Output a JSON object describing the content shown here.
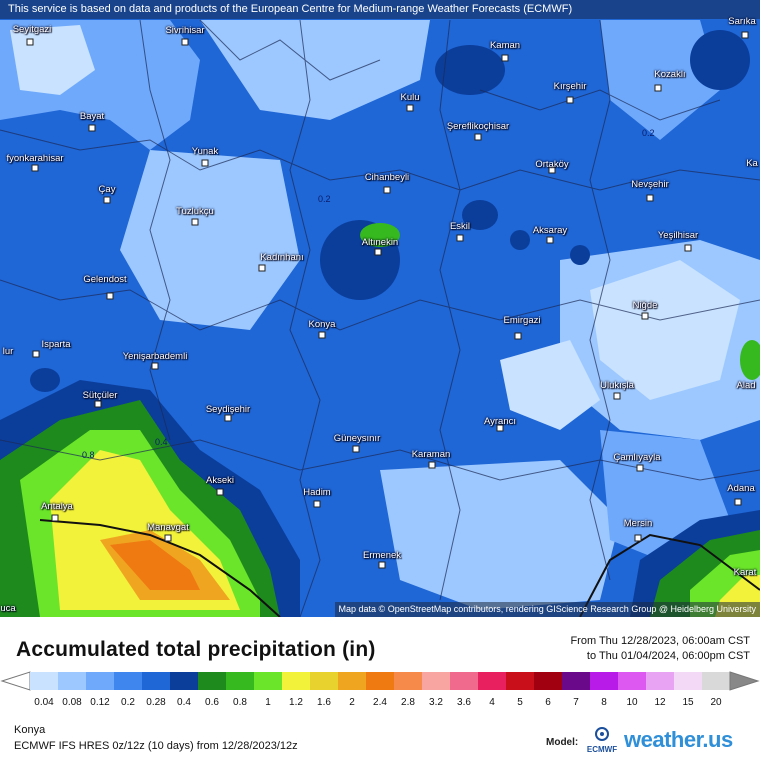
{
  "attribution_top": "This service is based on data and products of the European Centre for Medium-range Weather Forecasts (ECMWF)",
  "attribution_bottom": "Map data © OpenStreetMap contributors, rendering GIScience Research Group @ Heidelberg University",
  "title": "Accumulated total precipitation (in)",
  "range_from": "From Thu 12/28/2023, 06:00am CST",
  "range_to": "to Thu 01/04/2024, 06:00pm CST",
  "location": "Konya",
  "model_run": "ECMWF IFS HRES 0z/12z (10 days) from 12/28/2023/12z",
  "model_label": "Model:",
  "ecmwf_logo_text": "ECMWF",
  "brand": "weather.us",
  "contour_labels": [
    "0.2",
    "0.2",
    "0.8",
    "0.4"
  ],
  "legend": {
    "ticks": [
      "0.04",
      "0.08",
      "0.12",
      "0.2",
      "0.28",
      "0.4",
      "0.6",
      "0.8",
      "1",
      "1.2",
      "1.6",
      "2",
      "2.4",
      "2.8",
      "3.2",
      "3.6",
      "4",
      "5",
      "6",
      "7",
      "8",
      "10",
      "12",
      "15",
      "20"
    ],
    "colors": [
      "#c8e2ff",
      "#9cc8ff",
      "#6fa9fb",
      "#3f87ef",
      "#1f66d6",
      "#0b3e9b",
      "#1e8a1e",
      "#36b81f",
      "#6ae52a",
      "#f2f23a",
      "#e8d22d",
      "#f0a520",
      "#ef7a12",
      "#f58a4a",
      "#f8a4a0",
      "#f06a8e",
      "#e9205f",
      "#c80f1a",
      "#a00010",
      "#6a0a8a",
      "#b81be8",
      "#dd58f0",
      "#e9a3f3",
      "#f4d9f7",
      "#d9d9d9"
    ]
  },
  "cities": [
    {
      "name": "Seyitgazi"
    },
    {
      "name": "Sivrihisar"
    },
    {
      "name": "Kaman"
    },
    {
      "name": "Sarıka"
    },
    {
      "name": "Kozaklı"
    },
    {
      "name": "Kırşehir"
    },
    {
      "name": "Kulu"
    },
    {
      "name": "Şereflikoçhisar"
    },
    {
      "name": "Bayat"
    },
    {
      "name": "Yunak"
    },
    {
      "name": "Ortaköy"
    },
    {
      "name": "fyonkarahisar"
    },
    {
      "name": "Nevşehir"
    },
    {
      "name": "Cihanbeyli"
    },
    {
      "name": "Çay"
    },
    {
      "name": "Tuzlukçu"
    },
    {
      "name": "Eskil"
    },
    {
      "name": "Aksaray"
    },
    {
      "name": "Yeşilhisar"
    },
    {
      "name": "Altınekin"
    },
    {
      "name": "Kadınhanı"
    },
    {
      "name": "Gelendost"
    },
    {
      "name": "Niğde"
    },
    {
      "name": "Konya"
    },
    {
      "name": "Emirgazi"
    },
    {
      "name": "Isparta"
    },
    {
      "name": "Yenişarbademli"
    },
    {
      "name": "Ulukışla"
    },
    {
      "name": "Sütçüler"
    },
    {
      "name": "Seydişehir"
    },
    {
      "name": "Ayrancı"
    },
    {
      "name": "Güneysınır"
    },
    {
      "name": "Karaman"
    },
    {
      "name": "Çamlıyayla"
    },
    {
      "name": "Akseki"
    },
    {
      "name": "Hadim"
    },
    {
      "name": "Adana"
    },
    {
      "name": "Antalya"
    },
    {
      "name": "Manavgat"
    },
    {
      "name": "Mersin"
    },
    {
      "name": "Ermenek"
    },
    {
      "name": "Karat"
    },
    {
      "name": "Alad"
    },
    {
      "name": "lur"
    },
    {
      "name": "Ka"
    },
    {
      "name": "uca"
    }
  ]
}
